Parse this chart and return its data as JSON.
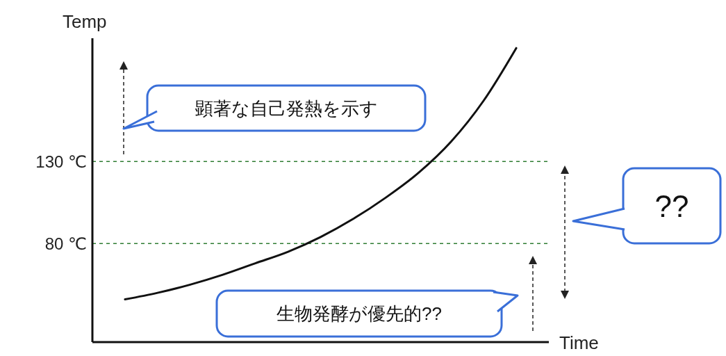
{
  "chart_data": {
    "type": "line",
    "ylabel": "Temp",
    "xlabel": "Time",
    "categories": [
      null,
      null,
      null,
      null,
      null,
      null,
      null,
      null,
      null,
      null,
      null,
      null,
      null,
      null,
      null
    ],
    "series": [
      {
        "color": "#111111",
        "values": [
          null,
          46,
          50,
          55,
          61,
          68,
          75,
          84,
          95,
          108,
          123,
          142,
          167,
          199,
          null
        ]
      }
    ],
    "ylim": [
      20,
      205
    ],
    "yticks": [
      {
        "value": 80,
        "label": "80 ℃"
      },
      {
        "value": 130,
        "label": "130 ℃"
      }
    ],
    "tick_labels": "y",
    "grid": false,
    "legend": false,
    "marker": "none",
    "line_style": "solid",
    "ref_lines": [
      {
        "axis": "y",
        "value": 130,
        "color": "#2e7d32",
        "line_style": "dashed"
      },
      {
        "axis": "y",
        "value": 80,
        "color": "#2e7d32",
        "line_style": "dashed"
      }
    ],
    "annotations": [
      "顕著な自己発熱を示す",
      "??",
      "生物発酵が優先的??"
    ]
  }
}
